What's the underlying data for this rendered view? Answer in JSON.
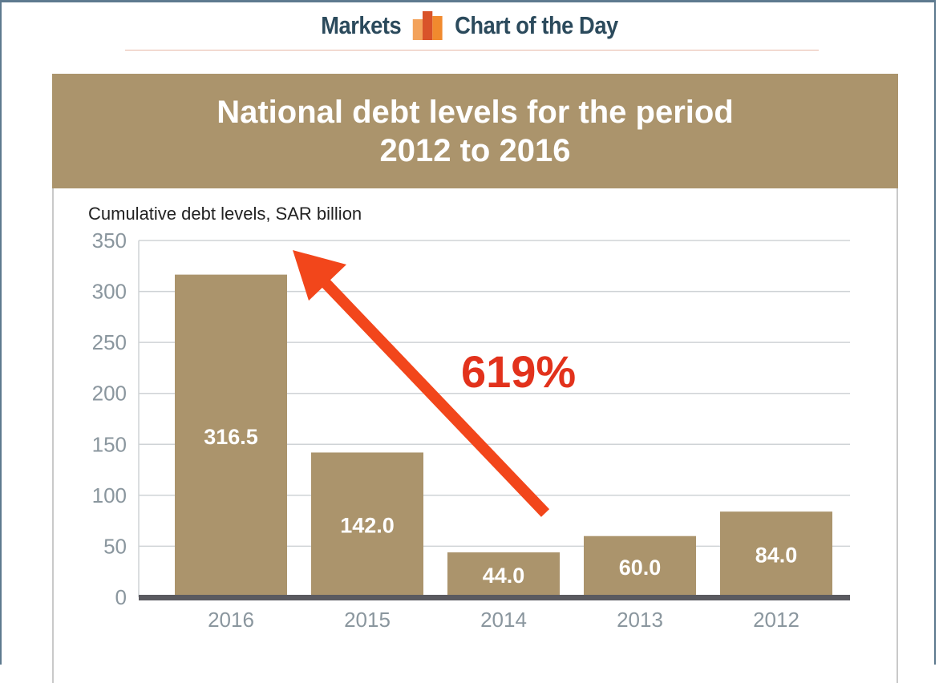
{
  "header": {
    "left": "Markets",
    "right": "Chart of the Day",
    "logo_icon": "bar-chart-logo-icon"
  },
  "colors": {
    "bar": "#ab946c",
    "title_band": "#ab946c",
    "arrow": "#f2461b",
    "annotation": "#e2321c",
    "axis": "#5a5a60",
    "grid": "#cfd3d6",
    "tick": "#8a969e"
  },
  "chart_data": {
    "type": "bar",
    "title": [
      "National debt levels for the period",
      "2012 to 2016"
    ],
    "ylabel": "Cumulative debt levels, SAR billion",
    "xlabel": "",
    "categories": [
      "2016",
      "2015",
      "2014",
      "2013",
      "2012"
    ],
    "values": [
      316.5,
      142.0,
      44.0,
      60.0,
      84.0
    ],
    "value_labels": [
      "316.5",
      "142.0",
      "44.0",
      "60.0",
      "84.0"
    ],
    "ylim": [
      0,
      350
    ],
    "yticks": [
      0,
      50,
      100,
      150,
      200,
      250,
      300,
      350
    ],
    "grid": true,
    "annotation": {
      "text": "619%",
      "arrow": "from 2014 up to 2016"
    }
  }
}
